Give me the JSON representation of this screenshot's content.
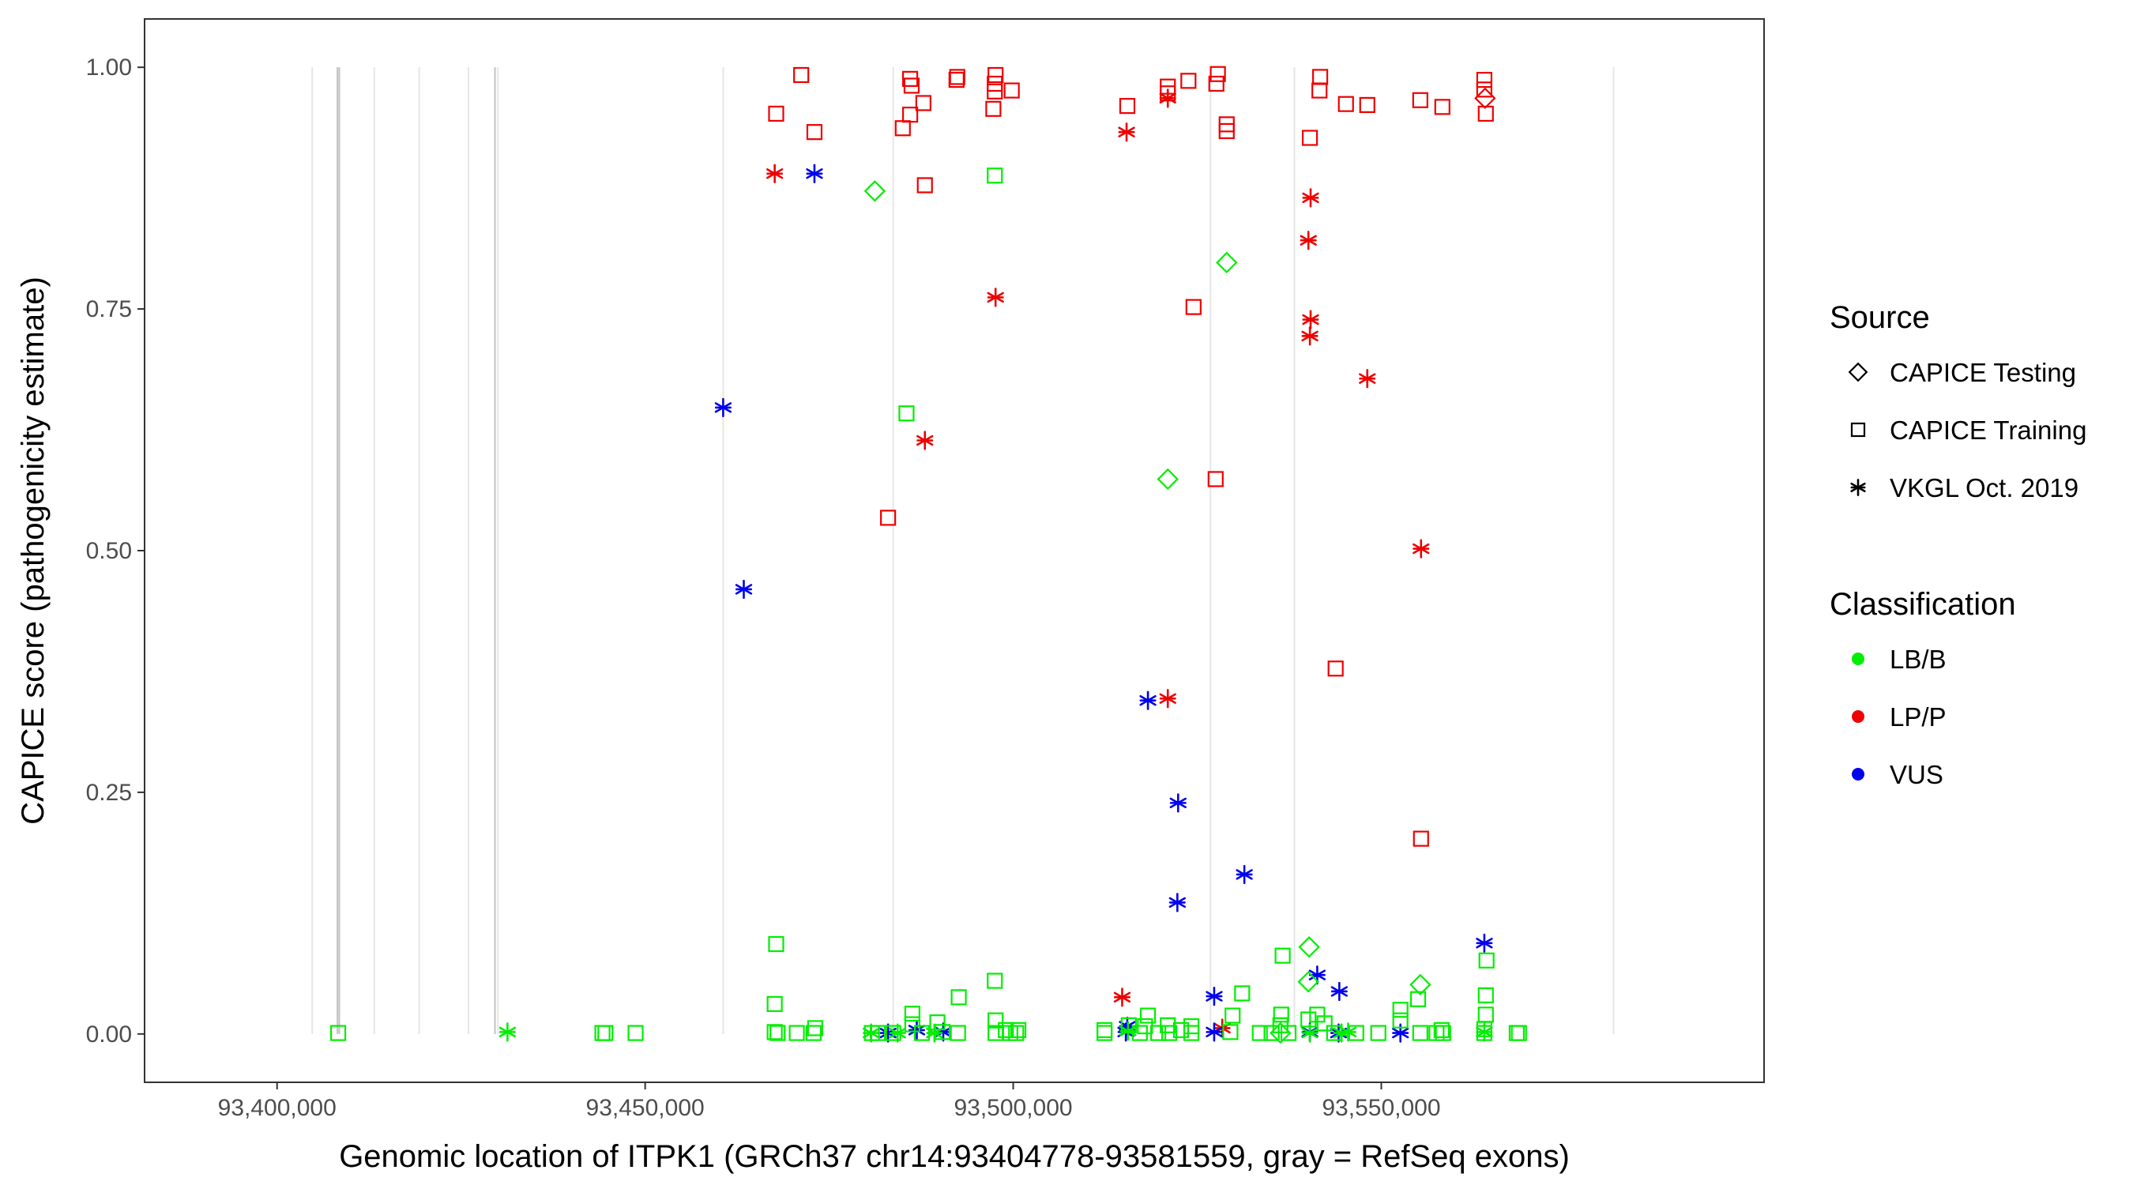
{
  "chart_data": {
    "type": "scatter",
    "title": "",
    "xlabel": "Genomic location of ITPK1 (GRCh37 chr14:93404778-93581559, gray = RefSeq exons)",
    "ylabel": "CAPICE score (pathogenicity estimate)",
    "xlim": [
      93382000,
      93602000
    ],
    "ylim": [
      -0.05,
      1.05
    ],
    "x_ticks": [
      93400000,
      93450000,
      93500000,
      93550000
    ],
    "x_tick_labels": [
      "93,400,000",
      "93,450,000",
      "93,500,000",
      "93,550,000"
    ],
    "y_ticks": [
      0,
      0.25,
      0.5,
      0.75,
      1.0
    ],
    "y_tick_labels": [
      "0.00",
      "0.25",
      "0.50",
      "0.75",
      "1.00"
    ],
    "grid": false,
    "exon_lines": [
      {
        "x": 93404778,
        "shade": "light"
      },
      {
        "x": 93408200,
        "shade": "dark"
      },
      {
        "x": 93408450,
        "shade": "dark"
      },
      {
        "x": 93413200,
        "shade": "light"
      },
      {
        "x": 93419300,
        "shade": "light"
      },
      {
        "x": 93426000,
        "shade": "light"
      },
      {
        "x": 93429600,
        "shade": "dark"
      },
      {
        "x": 93430000,
        "shade": "light"
      },
      {
        "x": 93460600,
        "shade": "light"
      },
      {
        "x": 93483700,
        "shade": "light"
      },
      {
        "x": 93526800,
        "shade": "light"
      },
      {
        "x": 93538200,
        "shade": "light"
      },
      {
        "x": 93581559,
        "shade": "light"
      }
    ],
    "exon_colors": {
      "light": "#e6e6e6",
      "dark": "#c2c2c2"
    },
    "legend": {
      "placement": "right",
      "source_title": "Source",
      "source_entries": [
        {
          "label": "CAPICE Testing",
          "shape": "diamond"
        },
        {
          "label": "CAPICE Training",
          "shape": "square"
        },
        {
          "label": "VKGL Oct. 2019",
          "shape": "asterisk"
        }
      ],
      "class_title": "Classification",
      "class_entries": [
        {
          "label": "LB/B",
          "key": "LBB"
        },
        {
          "label": "LP/P",
          "key": "LPP"
        },
        {
          "label": "VUS",
          "key": "VUS"
        }
      ]
    },
    "colors": {
      "LBB": "#00ee00",
      "LPP": "#ee0000",
      "VUS": "#0000ee"
    },
    "series": [
      {
        "name": "LP/P",
        "source": "CAPICE Training",
        "shape": "square",
        "color_key": "LPP",
        "points": [
          [
            93467800,
            0.952
          ],
          [
            93471200,
            0.992
          ],
          [
            93473000,
            0.933
          ],
          [
            93485000,
            0.937
          ],
          [
            93486000,
            0.951
          ],
          [
            93486000,
            0.988
          ],
          [
            93486200,
            0.981
          ],
          [
            93487800,
            0.963
          ],
          [
            93488000,
            0.878
          ],
          [
            93492300,
            0.987
          ],
          [
            93492400,
            0.99
          ],
          [
            93497300,
            0.957
          ],
          [
            93497500,
            0.975
          ],
          [
            93497500,
            0.983
          ],
          [
            93497600,
            0.992
          ],
          [
            93499800,
            0.976
          ],
          [
            93515500,
            0.96
          ],
          [
            93521000,
            0.98
          ],
          [
            93521000,
            0.973
          ],
          [
            93523800,
            0.986
          ],
          [
            93524500,
            0.752
          ],
          [
            93527600,
            0.983
          ],
          [
            93527800,
            0.993
          ],
          [
            93527500,
            0.574
          ],
          [
            93529000,
            0.941
          ],
          [
            93529000,
            0.934
          ],
          [
            93540300,
            0.927
          ],
          [
            93541600,
            0.976
          ],
          [
            93541700,
            0.99
          ],
          [
            93543800,
            0.378
          ],
          [
            93545200,
            0.962
          ],
          [
            93548100,
            0.961
          ],
          [
            93555300,
            0.966
          ],
          [
            93555400,
            0.202
          ],
          [
            93558300,
            0.959
          ],
          [
            93564000,
            0.987
          ],
          [
            93564000,
            0.977
          ],
          [
            93564200,
            0.952
          ],
          [
            93483000,
            0.534
          ]
        ]
      },
      {
        "name": "LP/P",
        "source": "VKGL Oct. 2019",
        "shape": "asterisk",
        "color_key": "LPP",
        "points": [
          [
            93467600,
            0.89
          ],
          [
            93488000,
            0.614
          ],
          [
            93497600,
            0.762
          ],
          [
            93515400,
            0.933
          ],
          [
            93521000,
            0.968
          ],
          [
            93521000,
            0.347
          ],
          [
            93540400,
            0.865
          ],
          [
            93540100,
            0.821
          ],
          [
            93540400,
            0.739
          ],
          [
            93540300,
            0.722
          ],
          [
            93548100,
            0.678
          ],
          [
            93555400,
            0.502
          ],
          [
            93514800,
            0.038
          ],
          [
            93528400,
            0.006
          ]
        ]
      },
      {
        "name": "LP/P",
        "source": "CAPICE Testing",
        "shape": "diamond",
        "color_key": "LPP",
        "points": [
          [
            93564100,
            0.968
          ]
        ]
      },
      {
        "name": "VUS",
        "source": "VKGL Oct. 2019",
        "shape": "asterisk",
        "color_key": "VUS",
        "points": [
          [
            93473000,
            0.89
          ],
          [
            93460600,
            0.648
          ],
          [
            93463400,
            0.46
          ],
          [
            93518300,
            0.345
          ],
          [
            93522400,
            0.239
          ],
          [
            93522300,
            0.136
          ],
          [
            93531400,
            0.165
          ],
          [
            93527300,
            0.039
          ],
          [
            93541300,
            0.061
          ],
          [
            93544300,
            0.044
          ],
          [
            93564000,
            0.094
          ],
          [
            93483000,
            0.001
          ],
          [
            93486900,
            0.004
          ],
          [
            93490500,
            0.002
          ],
          [
            93515500,
            0.008
          ],
          [
            93515300,
            0.002
          ],
          [
            93527300,
            0.002
          ],
          [
            93540300,
            0.002
          ],
          [
            93544200,
            0.001
          ],
          [
            93552600,
            0.001
          ]
        ]
      },
      {
        "name": "LB/B",
        "source": "CAPICE Training",
        "shape": "square",
        "color_key": "LBB",
        "points": [
          [
            93408300,
            0.001
          ],
          [
            93444200,
            0.001
          ],
          [
            93444600,
            0.001
          ],
          [
            93448700,
            0.001
          ],
          [
            93467800,
            0.093
          ],
          [
            93467600,
            0.031
          ],
          [
            93467600,
            0.002
          ],
          [
            93468000,
            0.001
          ],
          [
            93470600,
            0.001
          ],
          [
            93473100,
            0.006
          ],
          [
            93472900,
            0.001
          ],
          [
            93480800,
            0.001
          ],
          [
            93481600,
            0.001
          ],
          [
            93483700,
            0.001
          ],
          [
            93485500,
            0.642
          ],
          [
            93486300,
            0.021
          ],
          [
            93486300,
            0.01
          ],
          [
            93487600,
            0.001
          ],
          [
            93489700,
            0.012
          ],
          [
            93490400,
            0.002
          ],
          [
            93492600,
            0.038
          ],
          [
            93492500,
            0.001
          ],
          [
            93497500,
            0.888
          ],
          [
            93497500,
            0.055
          ],
          [
            93497600,
            0.014
          ],
          [
            93497600,
            0.001
          ],
          [
            93499000,
            0.004
          ],
          [
            93499600,
            0.001
          ],
          [
            93500700,
            0.004
          ],
          [
            93500400,
            0.001
          ],
          [
            93512400,
            0.004
          ],
          [
            93512400,
            0.001
          ],
          [
            93515700,
            0.009
          ],
          [
            93517200,
            0.001
          ],
          [
            93518300,
            0.019
          ],
          [
            93517900,
            0.008
          ],
          [
            93519700,
            0.001
          ],
          [
            93521000,
            0.009
          ],
          [
            93521200,
            0.001
          ],
          [
            93522800,
            0.004
          ],
          [
            93524200,
            0.008
          ],
          [
            93524200,
            0.001
          ],
          [
            93529800,
            0.019
          ],
          [
            93529500,
            0.002
          ],
          [
            93531100,
            0.042
          ],
          [
            93533500,
            0.001
          ],
          [
            93535100,
            0.001
          ],
          [
            93536600,
            0.081
          ],
          [
            93536400,
            0.02
          ],
          [
            93536300,
            0.009
          ],
          [
            93537400,
            0.001
          ],
          [
            93540100,
            0.015
          ],
          [
            93541300,
            0.02
          ],
          [
            93542300,
            0.011
          ],
          [
            93543600,
            0.001
          ],
          [
            93546600,
            0.001
          ],
          [
            93549600,
            0.001
          ],
          [
            93552600,
            0.025
          ],
          [
            93552600,
            0.014
          ],
          [
            93555000,
            0.036
          ],
          [
            93555300,
            0.001
          ],
          [
            93557500,
            0.001
          ],
          [
            93558200,
            0.004
          ],
          [
            93558400,
            0.001
          ],
          [
            93564300,
            0.076
          ],
          [
            93564200,
            0.04
          ],
          [
            93564200,
            0.02
          ],
          [
            93564000,
            0.005
          ],
          [
            93564000,
            0.001
          ],
          [
            93568400,
            0.001
          ],
          [
            93568700,
            0.001
          ]
        ]
      },
      {
        "name": "LB/B",
        "source": "VKGL Oct. 2019",
        "shape": "asterisk",
        "color_key": "LBB",
        "points": [
          [
            93431300,
            0.002
          ],
          [
            93480700,
            0.001
          ],
          [
            93484300,
            0.001
          ],
          [
            93489300,
            0.001
          ],
          [
            93515600,
            0.003
          ],
          [
            93540300,
            0.001
          ],
          [
            93544600,
            0.001
          ],
          [
            93545500,
            0.002
          ],
          [
            93564000,
            0.002
          ]
        ]
      },
      {
        "name": "LB/B",
        "source": "CAPICE Testing",
        "shape": "diamond",
        "color_key": "LBB",
        "points": [
          [
            93481200,
            0.872
          ],
          [
            93529000,
            0.798
          ],
          [
            93521000,
            0.574
          ],
          [
            93540200,
            0.09
          ],
          [
            93540100,
            0.054
          ],
          [
            93555300,
            0.051
          ],
          [
            93536300,
            0.001
          ]
        ]
      }
    ]
  }
}
